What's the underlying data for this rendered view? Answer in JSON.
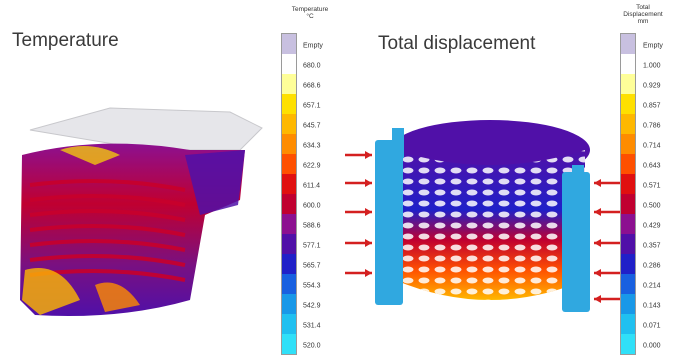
{
  "titles": {
    "left": "Temperature",
    "right": "Total displacement"
  },
  "legend_left": {
    "title_line1": "Temperature",
    "title_line2": "°C",
    "labels": [
      "Empty",
      "680.0",
      "668.6",
      "657.1",
      "645.7",
      "634.3",
      "622.9",
      "611.4",
      "600.0",
      "588.6",
      "577.1",
      "565.7",
      "554.3",
      "542.9",
      "531.4",
      "520.0"
    ]
  },
  "legend_right": {
    "title_line1": "Total",
    "title_line2": "Displacement",
    "title_line3": "mm",
    "labels": [
      "Empty",
      "1.000",
      "0.929",
      "0.857",
      "0.786",
      "0.714",
      "0.643",
      "0.571",
      "0.500",
      "0.429",
      "0.357",
      "0.286",
      "0.214",
      "0.143",
      "0.071",
      "0.000"
    ]
  },
  "colors": {
    "scale": [
      "#c8c0e0",
      "#ffffff",
      "#ffff99",
      "#ffe000",
      "#ffb800",
      "#ff8c00",
      "#ff5000",
      "#e01010",
      "#c00030",
      "#8c1090",
      "#5010a8",
      "#2020c8",
      "#1860e0",
      "#1898e8",
      "#20c0f0",
      "#30e0f8"
    ],
    "arrow": "#d42020"
  }
}
